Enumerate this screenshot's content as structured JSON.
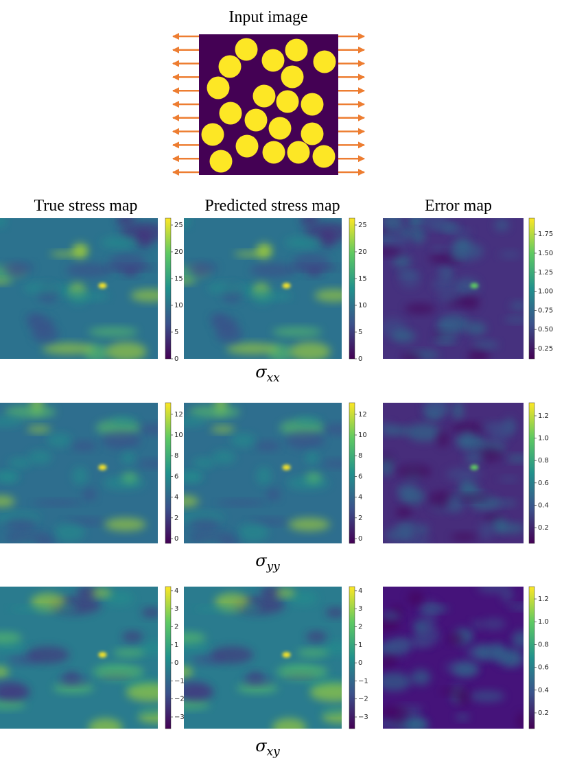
{
  "figure": {
    "input_title": "Input image",
    "column_headers": [
      "True stress map",
      "Predicted stress map",
      "Error map"
    ],
    "rows": [
      {
        "label": {
          "symbol": "σ",
          "subscript": "xx"
        },
        "colorbars": [
          [
            "0",
            "5",
            "10",
            "15",
            "20",
            "25"
          ],
          [
            "0",
            "5",
            "10",
            "15",
            "20",
            "25"
          ],
          [
            "0.25",
            "0.50",
            "0.75",
            "1.00",
            "1.25",
            "1.50",
            "1.75"
          ]
        ]
      },
      {
        "label": {
          "symbol": "σ",
          "subscript": "yy"
        },
        "colorbars": [
          [
            "0",
            "2",
            "4",
            "6",
            "8",
            "10",
            "12"
          ],
          [
            "0",
            "2",
            "4",
            "6",
            "8",
            "10",
            "12"
          ],
          [
            "0.2",
            "0.4",
            "0.6",
            "0.8",
            "1.0",
            "1.2"
          ]
        ]
      },
      {
        "label": {
          "symbol": "σ",
          "subscript": "xy"
        },
        "colorbars": [
          [
            "−3",
            "−2",
            "−1",
            "0",
            "1",
            "2",
            "3",
            "4"
          ],
          [
            "−3",
            "−2",
            "−1",
            "0",
            "1",
            "2",
            "3",
            "4"
          ],
          [
            "0.2",
            "0.4",
            "0.6",
            "0.8",
            "1.0",
            "1.2"
          ]
        ]
      }
    ]
  }
}
